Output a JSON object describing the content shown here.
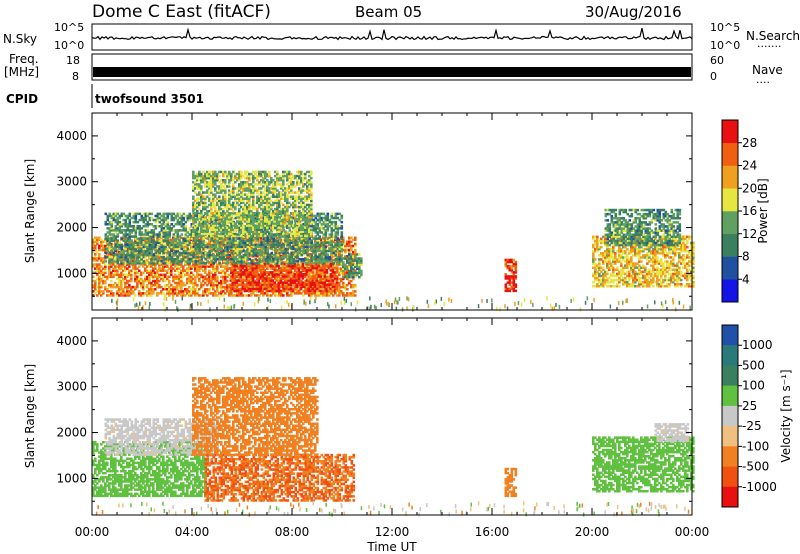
{
  "header": {
    "station": "Dome C East (fitACF)",
    "beam": "Beam 05",
    "date": "30/Aug/2016"
  },
  "panels": {
    "noise": {
      "left_label": "N.Sky",
      "right_label": "N.Search",
      "right_dots": "·······",
      "ticks_left": [
        "10^5",
        "10^0"
      ],
      "ticks_right": [
        "10^5",
        "10^0"
      ]
    },
    "freq": {
      "left_label_1": "Freq.",
      "left_label_2": "[MHz]",
      "right_label": "Nave",
      "right_dots": "····",
      "ticks_left": [
        "18",
        "8"
      ],
      "ticks_right": [
        "60",
        "0"
      ]
    },
    "cpid": {
      "label": "CPID",
      "value": "twofsound 3501"
    }
  },
  "xaxis": {
    "label": "Time UT",
    "ticks": [
      "00:00",
      "04:00",
      "08:00",
      "12:00",
      "16:00",
      "20:00",
      "00:00"
    ]
  },
  "colors": {
    "power": [
      "#1414e6",
      "#2050a0",
      "#3a8060",
      "#60a060",
      "#e6e640",
      "#f0a020",
      "#f06010",
      "#e81010"
    ],
    "velocity": [
      "#e81010",
      "#f05010",
      "#f08020",
      "#f0c080",
      "#c8c8c8",
      "#60c040",
      "#3a8060",
      "#2a7a7a",
      "#2050a8"
    ]
  },
  "chart_data": [
    {
      "type": "heatmap",
      "title": "Power",
      "ylabel": "Slant Range [km]",
      "ylim": [
        200,
        4500
      ],
      "yticks": [
        1000,
        2000,
        3000,
        4000
      ],
      "xlim": [
        0,
        24
      ],
      "colorbar": {
        "label": "Power [dB]",
        "ticks": [
          4,
          8,
          12,
          16,
          20,
          24,
          28
        ],
        "range": [
          0,
          32
        ]
      },
      "regions": [
        {
          "t0": 0.0,
          "t1": 10.5,
          "r0": 500,
          "r1": 1800,
          "level": 24
        },
        {
          "t0": 5.5,
          "t1": 9.8,
          "r0": 600,
          "r1": 1200,
          "level": 28
        },
        {
          "t0": 0.5,
          "t1": 10.0,
          "r0": 1200,
          "r1": 2300,
          "level": 12
        },
        {
          "t0": 4.0,
          "t1": 8.8,
          "r0": 1800,
          "r1": 3200,
          "level": 16
        },
        {
          "t0": 10.0,
          "t1": 10.8,
          "r0": 900,
          "r1": 1400,
          "level": 12
        },
        {
          "t0": 16.5,
          "t1": 16.9,
          "r0": 600,
          "r1": 1300,
          "level": 28
        },
        {
          "t0": 20.0,
          "t1": 24.0,
          "r0": 700,
          "r1": 1800,
          "level": 20
        },
        {
          "t0": 20.5,
          "t1": 23.5,
          "r0": 1600,
          "r1": 2400,
          "level": 12
        }
      ]
    },
    {
      "type": "heatmap",
      "title": "Velocity",
      "ylabel": "Slant Range [km]",
      "ylim": [
        200,
        4500
      ],
      "yticks": [
        1000,
        2000,
        3000,
        4000
      ],
      "xlim": [
        0,
        24
      ],
      "colorbar": {
        "label": "Velocity [m s⁻¹]",
        "ticks": [
          "1000",
          "500",
          "100",
          "25",
          "-25",
          "-100",
          "-500",
          "-1000"
        ]
      },
      "regions": [
        {
          "t0": 0.0,
          "t1": 4.5,
          "r0": 600,
          "r1": 1800,
          "level": 100
        },
        {
          "t0": 0.5,
          "t1": 5.0,
          "r0": 1500,
          "r1": 2300,
          "level": 25
        },
        {
          "t0": 4.5,
          "t1": 10.5,
          "r0": 500,
          "r1": 1500,
          "level": -300
        },
        {
          "t0": 4.0,
          "t1": 9.0,
          "r0": 1500,
          "r1": 3200,
          "level": -100
        },
        {
          "t0": 16.5,
          "t1": 16.9,
          "r0": 600,
          "r1": 1200,
          "level": -100
        },
        {
          "t0": 20.0,
          "t1": 24.0,
          "r0": 700,
          "r1": 1900,
          "level": 100
        },
        {
          "t0": 22.5,
          "t1": 23.8,
          "r0": 1800,
          "r1": 2200,
          "level": 25
        }
      ]
    }
  ]
}
